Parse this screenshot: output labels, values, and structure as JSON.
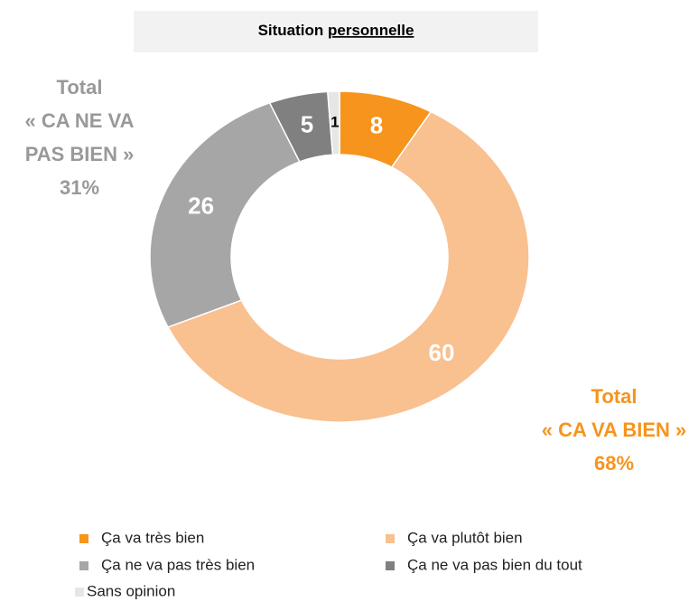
{
  "chart_data": {
    "type": "donut",
    "title": {
      "text": "Situation",
      "underlined": "personnelle"
    },
    "categories": [
      "Ça va très bien",
      "Ça va plutôt bien",
      "Ça ne va pas très bien",
      "Ça ne va pas bien du tout",
      "Sans opinion"
    ],
    "values": [
      8,
      60,
      26,
      5,
      1
    ],
    "colors": [
      "#f7941d",
      "#f9c090",
      "#a6a6a6",
      "#808080",
      "#e6e6e6"
    ],
    "label_colors": [
      "#ffffff",
      "#ffffff",
      "#ffffff",
      "#ffffff",
      "#000000"
    ],
    "annotations": [
      {
        "lines": [
          "Total",
          "« CA NE VA",
          "PAS BIEN »"
        ],
        "value": 31,
        "value_label": "31%",
        "color": "#999999"
      },
      {
        "lines": [
          "Total",
          "« CA VA BIEN »"
        ],
        "value": 68,
        "value_label": "68%",
        "color": "#f7941d"
      }
    ],
    "legend": "bottom"
  }
}
